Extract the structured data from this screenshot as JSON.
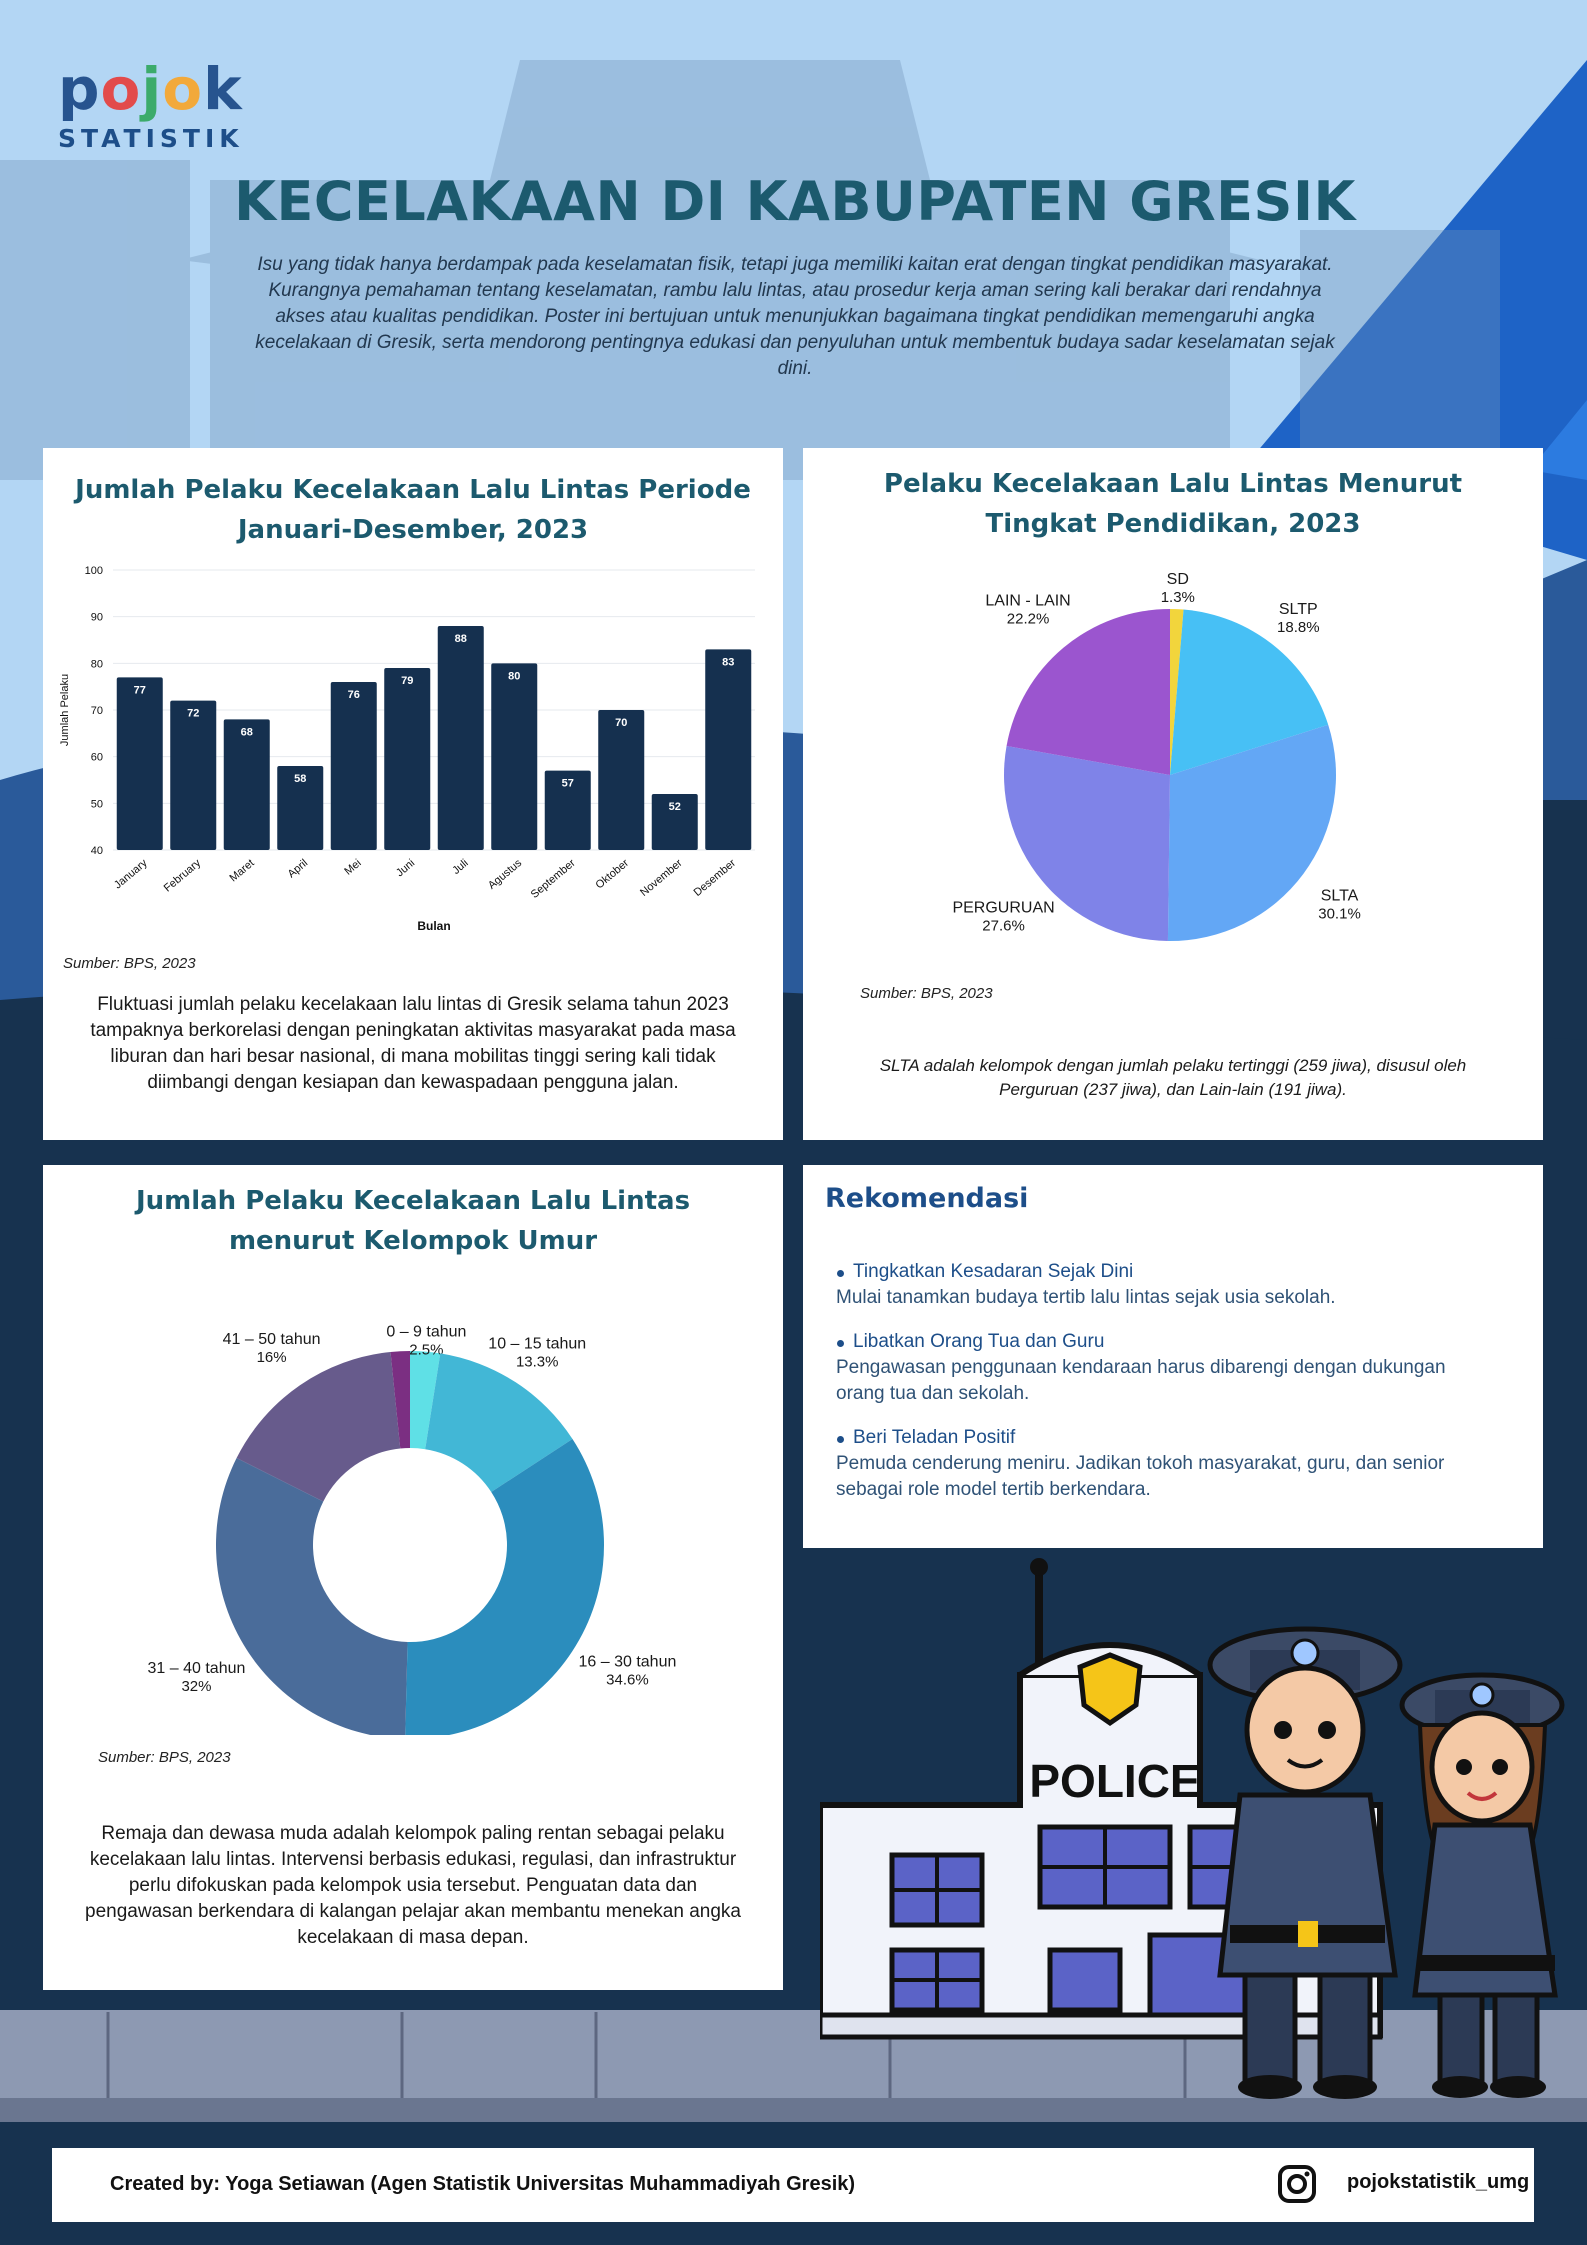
{
  "logo": {
    "top": "pojok",
    "bottom": "STATISTIK"
  },
  "header": {
    "title": "KECELAKAAN DI KABUPATEN GRESIK",
    "intro": "Isu yang tidak hanya berdampak pada keselamatan fisik, tetapi juga memiliki kaitan erat dengan tingkat pendidikan masyarakat. Kurangnya pemahaman tentang keselamatan, rambu lalu lintas, atau prosedur kerja aman sering kali berakar dari rendahnya akses atau kualitas pendidikan. Poster ini bertujuan untuk menunjukkan bagaimana tingkat pendidikan memengaruhi angka kecelakaan di Gresik, serta mendorong pentingnya edukasi dan penyuluhan untuk membentuk budaya sadar keselamatan sejak dini."
  },
  "bar_card": {
    "source": "Sumber: BPS, 2023",
    "note": "Fluktuasi jumlah pelaku kecelakaan lalu lintas di Gresik selama tahun 2023 tampaknya berkorelasi dengan peningkatan aktivitas masyarakat pada masa liburan dan hari besar nasional, di mana mobilitas tinggi sering kali tidak diimbangi dengan kesiapan dan kewaspadaan pengguna jalan."
  },
  "pie_card": {
    "source": "Sumber: BPS, 2023",
    "note": "SLTA adalah kelompok dengan jumlah pelaku tertinggi (259 jiwa), disusul oleh Perguruan (237 jiwa), dan Lain-lain (191 jiwa)."
  },
  "donut_card": {
    "source": "Sumber: BPS, 2023",
    "note": "Remaja dan dewasa muda adalah kelompok paling rentan sebagai pelaku kecelakaan lalu lintas. Intervensi berbasis edukasi, regulasi, dan infrastruktur perlu difokuskan pada kelompok usia tersebut. Penguatan data dan pengawasan berkendara di kalangan pelajar akan membantu menekan angka kecelakaan di masa depan."
  },
  "rekomendasi": {
    "title": "Rekomendasi",
    "items": [
      {
        "head": "Tingkatkan Kesadaran Sejak Dini",
        "desc": "Mulai tanamkan budaya tertib lalu lintas sejak usia sekolah."
      },
      {
        "head": "Libatkan Orang Tua dan Guru",
        "desc": "Pengawasan penggunaan kendaraan harus dibarengi dengan dukungan orang tua dan sekolah."
      },
      {
        "head": "Beri Teladan Positif",
        "desc": "Pemuda cenderung meniru. Jadikan tokoh masyarakat, guru, dan senior sebagai role model tertib berkendara."
      }
    ]
  },
  "illustration": {
    "sign_text": "POLICE"
  },
  "footer": {
    "credit": "Created by: Yoga Setiawan (Agen Statistik Universitas Muhammadiyah Gresik)",
    "handle": "pojokstatistik_umg",
    "icon": "instagram-icon"
  },
  "colors": {
    "navy": "#15304f",
    "teal_title": "#1c5a6e",
    "sky": "#b3d6f4",
    "accent_blue": "#1e63c6"
  },
  "chart_data": [
    {
      "type": "bar",
      "title": "Jumlah Pelaku Kecelakaan Lalu Lintas Periode Januari-Desember, 2023",
      "xlabel": "Bulan",
      "ylabel": "Jumlah Pelaku",
      "categories": [
        "January",
        "February",
        "Maret",
        "April",
        "Mei",
        "Juni",
        "Juli",
        "Agustus",
        "September",
        "Oktober",
        "November",
        "Desember"
      ],
      "values": [
        77,
        72,
        68,
        58,
        76,
        79,
        88,
        80,
        57,
        70,
        52,
        83
      ],
      "ylim": [
        40,
        100
      ],
      "yticks": [
        40,
        50,
        60,
        70,
        80,
        90,
        100
      ],
      "grid": true,
      "color": "#15304f"
    },
    {
      "type": "pie",
      "title": "Pelaku Kecelakaan Lalu Lintas Menurut Tingkat Pendidikan, 2023",
      "slices": [
        {
          "label": "SD",
          "pct": "1.3%",
          "value": 1.3,
          "color": "#f2d53c"
        },
        {
          "label": "SLTP",
          "pct": "18.8%",
          "value": 18.8,
          "color": "#47c0f5"
        },
        {
          "label": "SLTA",
          "pct": "30.1%",
          "value": 30.1,
          "color": "#63a7f5"
        },
        {
          "label": "PERGURUAN",
          "pct": "27.6%",
          "value": 27.6,
          "color": "#7f83e8"
        },
        {
          "label": "LAIN - LAIN",
          "pct": "22.2%",
          "value": 22.2,
          "color": "#9b55cf"
        }
      ]
    },
    {
      "type": "pie",
      "title": "Jumlah Pelaku Kecelakaan Lalu Lintas menurut Kelompok Umur",
      "donut": true,
      "slices": [
        {
          "label": "0 – 9 tahun",
          "pct": "2.5%",
          "value": 2.5,
          "color": "#5fe0e6"
        },
        {
          "label": "10 – 15 tahun",
          "pct": "13.3%",
          "value": 13.3,
          "color": "#42b7d6"
        },
        {
          "label": "16 – 30 tahun",
          "pct": "34.6%",
          "value": 34.6,
          "color": "#2b8dbd"
        },
        {
          "label": "31 – 40 tahun",
          "pct": "32%",
          "value": 32,
          "color": "#4a6c9a"
        },
        {
          "label": "41 – 50 tahun",
          "pct": "16%",
          "value": 16,
          "color": "#675b8c"
        },
        {
          "label": "",
          "pct": "",
          "value": 1.6,
          "color": "#7b2f82"
        }
      ]
    }
  ]
}
